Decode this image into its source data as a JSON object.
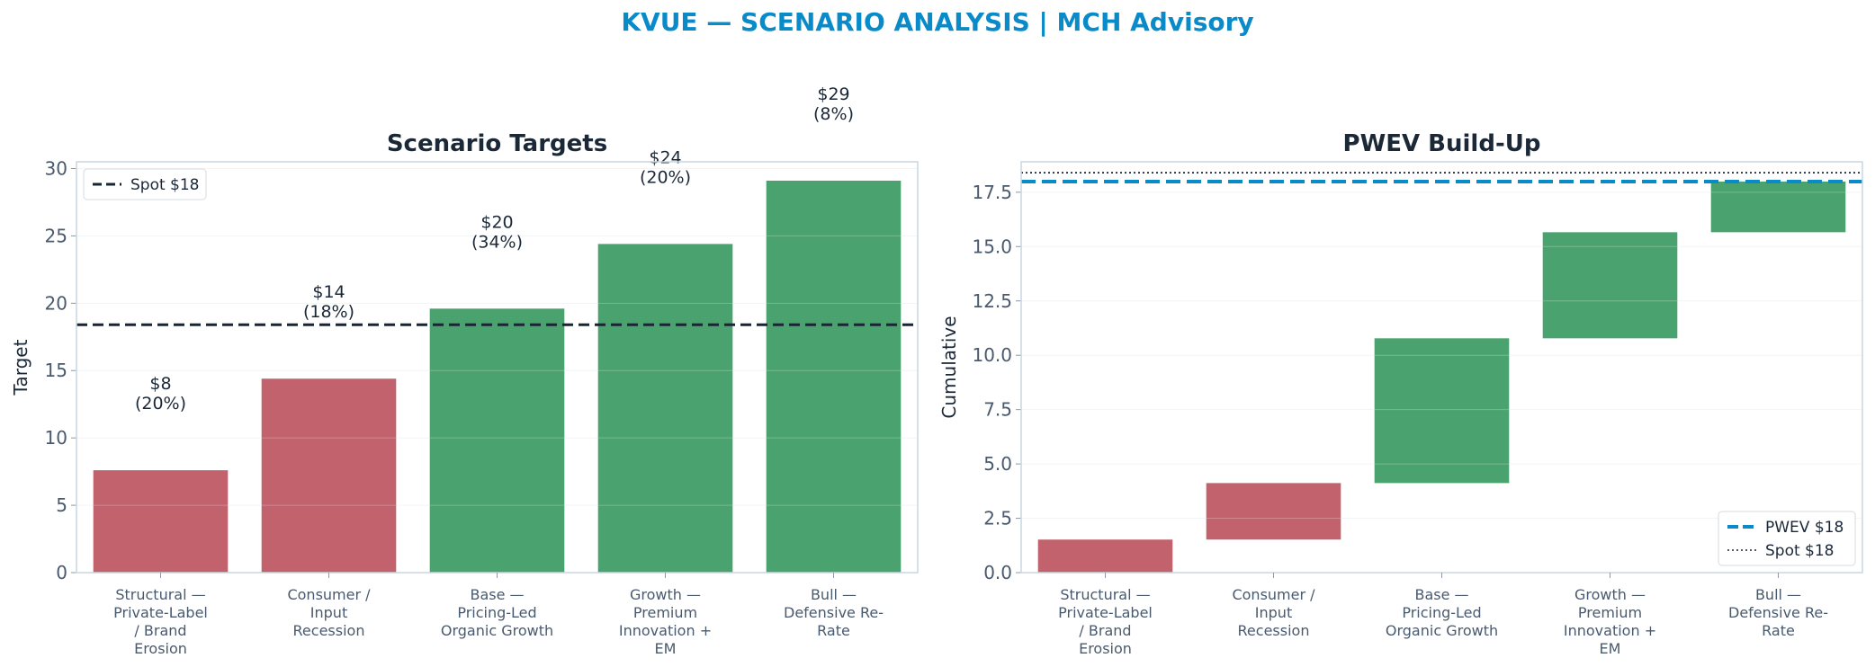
{
  "page_title": "KVUE — SCENARIO ANALYSIS | MCH Advisory",
  "colors": {
    "title": "#0a8bc9",
    "negative": "#c1626d",
    "positive": "#4aa26e",
    "spot_line": "#1a2433",
    "pwev_line": "#0a8bc9",
    "axis_text": "#4a5a6e",
    "frame": "#c9d6e0"
  },
  "chart_data": [
    {
      "type": "bar",
      "title": "Scenario Targets",
      "xlabel": "",
      "ylabel": "Target",
      "ylim": [
        0,
        30.5
      ],
      "yticks": [
        "0",
        "5",
        "10",
        "15",
        "20",
        "25",
        "30"
      ],
      "categories": [
        "Structural — Private-Label / Brand Erosion",
        "Consumer / Input Recession",
        "Base — Pricing-Led Organic Growth",
        "Growth — Premium Innovation + EM",
        "Bull — Defensive Re-Rate"
      ],
      "category_lines": [
        [
          "Structural —",
          "Private-Label",
          "/ Brand",
          "Erosion"
        ],
        [
          "Consumer /",
          "Input",
          "Recession"
        ],
        [
          "Base —",
          "Pricing-Led",
          "Organic Growth"
        ],
        [
          "Growth —",
          "Premium",
          "Innovation +",
          "EM"
        ],
        [
          "Bull —",
          "Defensive Re-",
          "Rate"
        ]
      ],
      "values": [
        7.6,
        14.4,
        19.6,
        24.4,
        29.1
      ],
      "bar_labels": [
        [
          "$8",
          "(20%)"
        ],
        [
          "$14",
          "(18%)"
        ],
        [
          "$20",
          "(34%)"
        ],
        [
          "$24",
          "(20%)"
        ],
        [
          "$29",
          "(8%)"
        ]
      ],
      "reference_line": {
        "value": 18.4,
        "label": "Spot $18"
      },
      "legend": {
        "position": "top-left",
        "entries": [
          "Spot $18"
        ]
      },
      "grid": true
    },
    {
      "type": "bar",
      "subtype": "waterfall",
      "title": "PWEV Build-Up",
      "xlabel": "",
      "ylabel": "Cumulative",
      "ylim": [
        0,
        18.9
      ],
      "yticks": [
        "0.0",
        "2.5",
        "5.0",
        "7.5",
        "10.0",
        "12.5",
        "15.0",
        "17.5"
      ],
      "categories": [
        "Structural — Private-Label / Brand Erosion",
        "Consumer / Input Recession",
        "Base — Pricing-Led Organic Growth",
        "Growth — Premium Innovation + EM",
        "Bull — Defensive Re-Rate"
      ],
      "segments": [
        {
          "start": 0.0,
          "end": 1.52
        },
        {
          "start": 1.52,
          "end": 4.12
        },
        {
          "start": 4.12,
          "end": 10.78
        },
        {
          "start": 10.78,
          "end": 15.66
        },
        {
          "start": 15.66,
          "end": 17.99
        }
      ],
      "reference_lines": [
        {
          "value": 17.99,
          "label": "PWEV $18",
          "style": "dashed"
        },
        {
          "value": 18.4,
          "label": "Spot $18",
          "style": "dotted"
        }
      ],
      "legend": {
        "position": "bottom-right",
        "entries": [
          "PWEV $18",
          "Spot $18"
        ]
      },
      "grid": true
    }
  ]
}
